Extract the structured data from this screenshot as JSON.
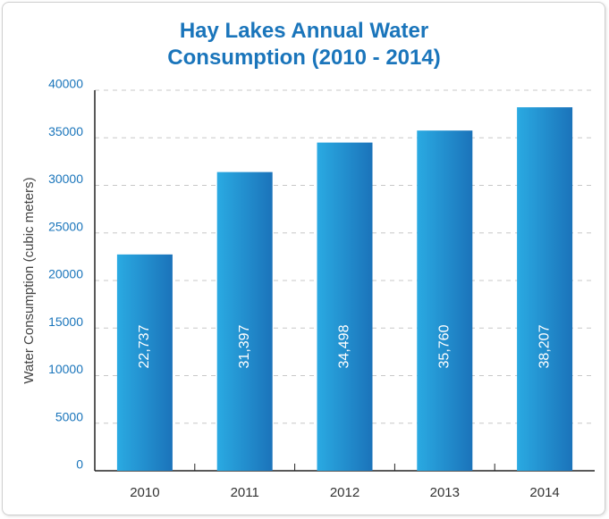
{
  "chart_data": {
    "type": "bar",
    "title": "Hay Lakes Annual Water Consumption (2010 - 2014)",
    "y_label": "Water Consumption (cubic meters)",
    "categories": [
      "2010",
      "2011",
      "2012",
      "2013",
      "2014"
    ],
    "values": [
      22737,
      31397,
      34498,
      35760,
      38207
    ],
    "value_labels": [
      "22,737",
      "31,397",
      "34,498",
      "35,760",
      "38,207"
    ],
    "color": [
      "#2aaae2",
      "#1b73ba"
    ],
    "ylim": [
      0,
      40000
    ],
    "yticks": [
      0,
      5000,
      10000,
      15000,
      20000,
      25000,
      30000,
      35000,
      40000
    ],
    "grid": true
  }
}
